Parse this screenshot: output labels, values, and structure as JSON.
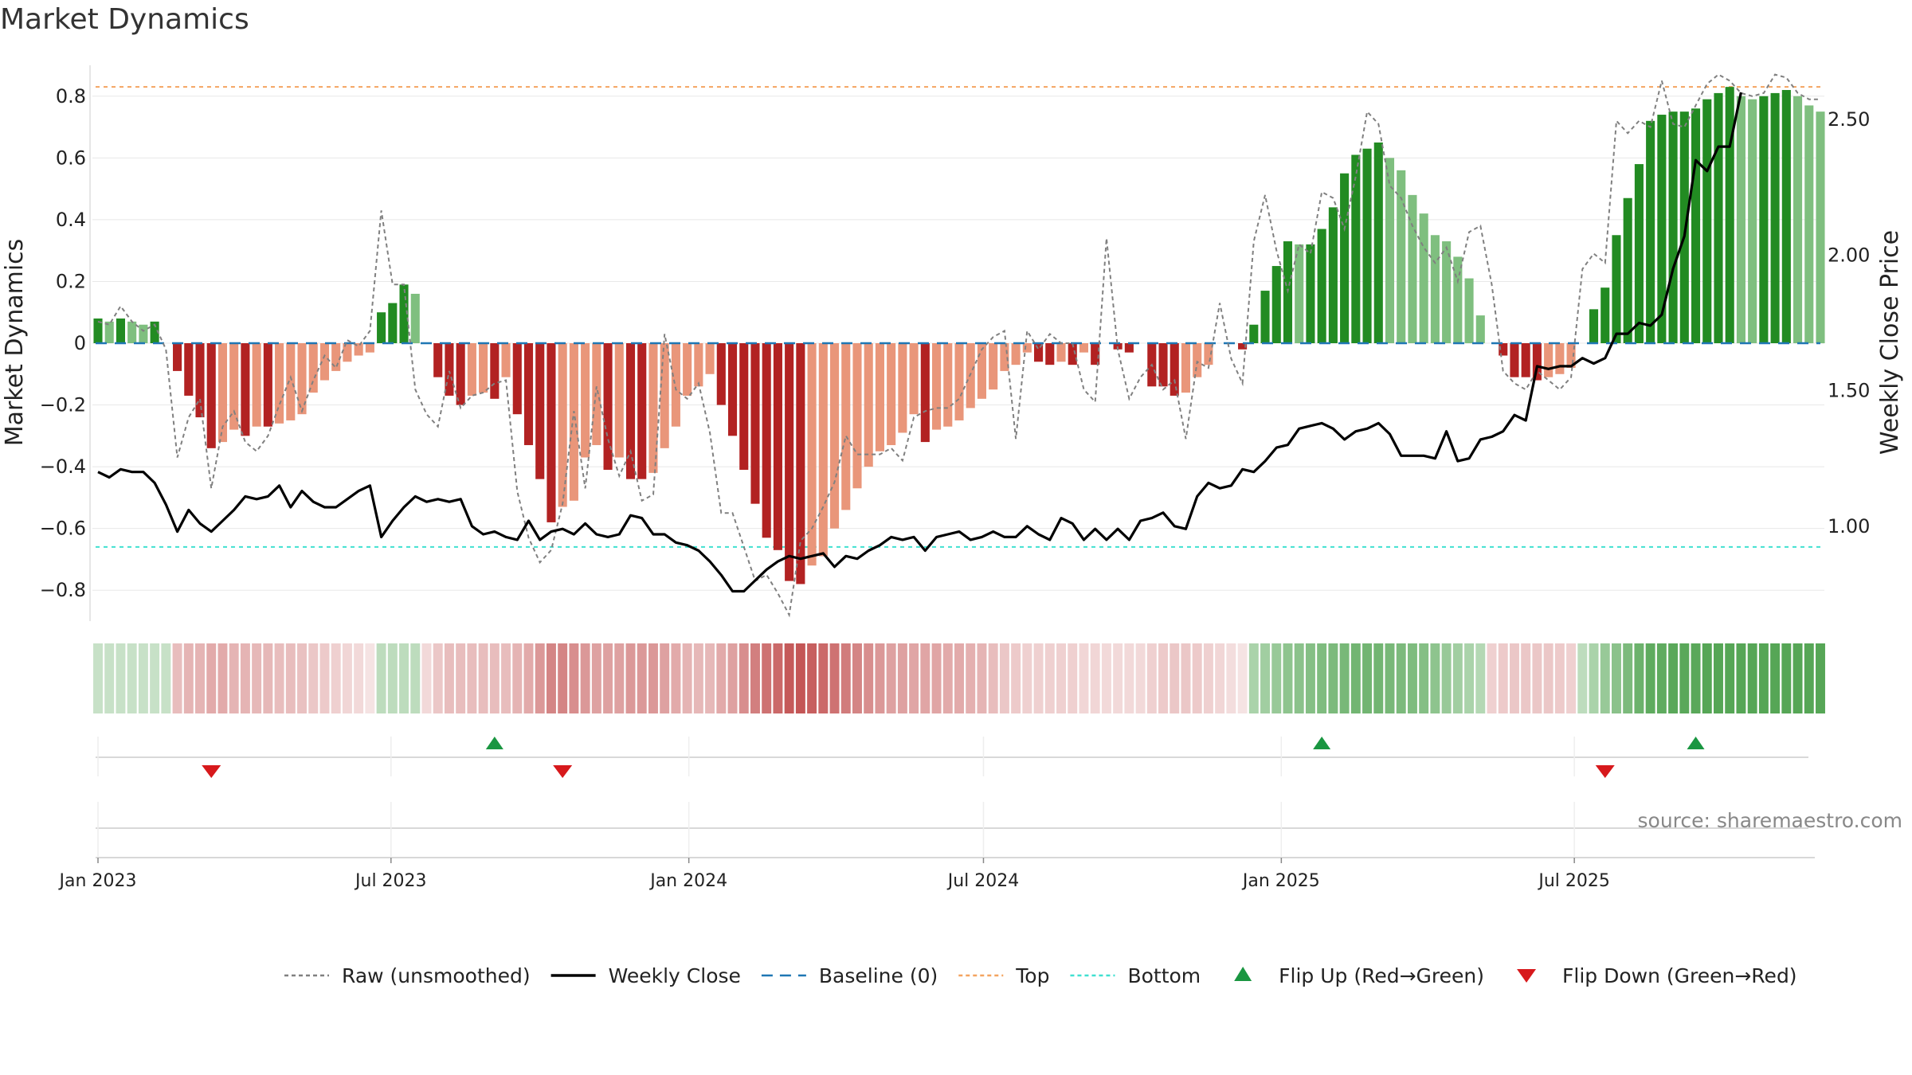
{
  "title": "Market Dynamics",
  "source": "source: sharemaestro.com",
  "colors": {
    "green_strong": "#228b22",
    "green_light": "#7fbf7f",
    "red_strong": "#b22222",
    "red_light": "#e9967a",
    "raw": "#808080",
    "close": "#000000",
    "baseline": "#1f77b4",
    "top": "#f4a460",
    "bottom": "#40e0d0",
    "flip_up": "#1a9641",
    "flip_down": "#d7191c"
  },
  "chart_data": {
    "type": "bar",
    "start_date": "2023-01-01",
    "week_step_days": 7,
    "x_ticks": [
      {
        "date": "2023-01-01",
        "label": "Jan 2023"
      },
      {
        "date": "2023-07-01",
        "label": "Jul 2023"
      },
      {
        "date": "2024-01-01",
        "label": "Jan 2024"
      },
      {
        "date": "2024-07-01",
        "label": "Jul 2024"
      },
      {
        "date": "2025-01-01",
        "label": "Jan 2025"
      },
      {
        "date": "2025-07-01",
        "label": "Jul 2025"
      }
    ],
    "ylabel": "Market Dynamics",
    "y2label": "Weekly Close Price",
    "ylim": [
      -0.9,
      0.9
    ],
    "y2lim": [
      0.65,
      2.7
    ],
    "y_ticks": [
      {
        "v": 0.8,
        "label": "0.8"
      },
      {
        "v": 0.6,
        "label": "0.6"
      },
      {
        "v": 0.4,
        "label": "0.4"
      },
      {
        "v": 0.2,
        "label": "0.2"
      },
      {
        "v": 0,
        "label": "0"
      },
      {
        "v": -0.2,
        "label": "−0.2"
      },
      {
        "v": -0.4,
        "label": "−0.4"
      },
      {
        "v": -0.6,
        "label": "−0.6"
      },
      {
        "v": -0.8,
        "label": "−0.8"
      }
    ],
    "y2_ticks": [
      {
        "v": 2.5,
        "label": "2.50"
      },
      {
        "v": 2.0,
        "label": "2.00"
      },
      {
        "v": 1.5,
        "label": "1.50"
      },
      {
        "v": 1.0,
        "label": "1.00"
      }
    ],
    "top_level": 0.83,
    "bottom_level": -0.66,
    "baseline": 0,
    "momentum": [
      0.08,
      0.07,
      0.08,
      0.07,
      0.06,
      0.07,
      0,
      -0.09,
      -0.17,
      -0.24,
      -0.34,
      -0.32,
      -0.28,
      -0.3,
      -0.27,
      -0.27,
      -0.26,
      -0.25,
      -0.23,
      -0.16,
      -0.12,
      -0.09,
      -0.06,
      -0.04,
      -0.03,
      0.1,
      0.13,
      0.19,
      0.16,
      0,
      -0.11,
      -0.17,
      -0.2,
      -0.17,
      -0.16,
      -0.18,
      -0.11,
      -0.23,
      -0.33,
      -0.44,
      -0.58,
      -0.53,
      -0.51,
      -0.37,
      -0.33,
      -0.41,
      -0.37,
      -0.44,
      -0.44,
      -0.42,
      -0.34,
      -0.27,
      -0.17,
      -0.14,
      -0.1,
      -0.2,
      -0.3,
      -0.41,
      -0.52,
      -0.63,
      -0.67,
      -0.77,
      -0.78,
      -0.72,
      -0.69,
      -0.6,
      -0.54,
      -0.47,
      -0.4,
      -0.35,
      -0.33,
      -0.29,
      -0.23,
      -0.32,
      -0.28,
      -0.27,
      -0.25,
      -0.21,
      -0.18,
      -0.15,
      -0.09,
      -0.07,
      -0.03,
      -0.06,
      -0.07,
      -0.06,
      -0.07,
      -0.03,
      -0.07,
      0,
      -0.02,
      -0.03,
      0,
      -0.14,
      -0.14,
      -0.17,
      -0.16,
      -0.11,
      -0.07,
      0,
      0,
      -0.02,
      0.06,
      0.17,
      0.25,
      0.33,
      0.32,
      0.32,
      0.37,
      0.44,
      0.55,
      0.61,
      0.63,
      0.65,
      0.6,
      0.56,
      0.48,
      0.42,
      0.35,
      0.33,
      0.28,
      0.21,
      0.09,
      0,
      -0.04,
      -0.11,
      -0.11,
      -0.12,
      -0.11,
      -0.1,
      -0.08,
      0,
      0.11,
      0.18,
      0.35,
      0.47,
      0.58,
      0.72,
      0.74,
      0.75,
      0.75,
      0.76,
      0.79,
      0.81,
      0.83,
      0.8,
      0.79,
      0.8,
      0.81,
      0.82,
      0.8,
      0.77,
      0.75
    ],
    "raw": [
      0.07,
      0.06,
      0.12,
      0.07,
      0.04,
      0.06,
      -0.02,
      -0.37,
      -0.24,
      -0.18,
      -0.47,
      -0.27,
      -0.22,
      -0.32,
      -0.35,
      -0.3,
      -0.2,
      -0.11,
      -0.22,
      -0.12,
      -0.04,
      -0.08,
      0.01,
      -0.01,
      0.04,
      0.43,
      0.19,
      0.19,
      -0.15,
      -0.23,
      -0.27,
      -0.09,
      -0.21,
      -0.17,
      -0.16,
      -0.13,
      -0.12,
      -0.48,
      -0.63,
      -0.71,
      -0.67,
      -0.52,
      -0.22,
      -0.47,
      -0.14,
      -0.31,
      -0.43,
      -0.35,
      -0.51,
      -0.49,
      0.03,
      -0.15,
      -0.18,
      -0.13,
      -0.29,
      -0.55,
      -0.55,
      -0.66,
      -0.77,
      -0.75,
      -0.81,
      -0.88,
      -0.64,
      -0.6,
      -0.53,
      -0.45,
      -0.3,
      -0.36,
      -0.36,
      -0.36,
      -0.34,
      -0.38,
      -0.24,
      -0.22,
      -0.21,
      -0.21,
      -0.18,
      -0.1,
      -0.02,
      0.02,
      0.04,
      -0.31,
      0.04,
      -0.02,
      0.03,
      0,
      0,
      -0.15,
      -0.19,
      0.34,
      -0.02,
      -0.18,
      -0.11,
      -0.07,
      -0.15,
      -0.12,
      -0.31,
      -0.06,
      -0.08,
      0.13,
      -0.05,
      -0.13,
      0.33,
      0.48,
      0.3,
      0.17,
      0.32,
      0.29,
      0.49,
      0.47,
      0.37,
      0.54,
      0.75,
      0.71,
      0.51,
      0.47,
      0.38,
      0.31,
      0.26,
      0.31,
      0.2,
      0.36,
      0.38,
      0.19,
      -0.09,
      -0.13,
      -0.15,
      -0.09,
      -0.12,
      -0.15,
      -0.11,
      0.24,
      0.29,
      0.26,
      0.72,
      0.68,
      0.72,
      0.7,
      0.85,
      0.71,
      0.7,
      0.77,
      0.84,
      0.87,
      0.85,
      0.81,
      0.8,
      0.81,
      0.87,
      0.86,
      0.81,
      0.79,
      0.79
    ],
    "close": [
      1.2,
      1.18,
      1.21,
      1.2,
      1.2,
      1.16,
      1.08,
      0.98,
      1.06,
      1.01,
      0.98,
      1.02,
      1.06,
      1.11,
      1.1,
      1.11,
      1.15,
      1.07,
      1.13,
      1.09,
      1.07,
      1.07,
      1.1,
      1.13,
      1.15,
      0.96,
      1.02,
      1.07,
      1.11,
      1.09,
      1.1,
      1.09,
      1.1,
      1.0,
      0.97,
      0.98,
      0.96,
      0.95,
      1.02,
      0.95,
      0.98,
      0.99,
      0.97,
      1.01,
      0.97,
      0.96,
      0.97,
      1.04,
      1.03,
      0.97,
      0.97,
      0.94,
      0.93,
      0.91,
      0.87,
      0.82,
      0.76,
      0.76,
      0.8,
      0.84,
      0.87,
      0.89,
      0.88,
      0.89,
      0.9,
      0.85,
      0.89,
      0.88,
      0.91,
      0.93,
      0.96,
      0.95,
      0.96,
      0.91,
      0.96,
      0.97,
      0.98,
      0.95,
      0.96,
      0.98,
      0.96,
      0.96,
      1.0,
      0.97,
      0.95,
      1.03,
      1.01,
      0.95,
      0.99,
      0.95,
      0.99,
      0.95,
      1.02,
      1.03,
      1.05,
      1.0,
      0.99,
      1.11,
      1.16,
      1.14,
      1.15,
      1.21,
      1.2,
      1.24,
      1.29,
      1.3,
      1.36,
      1.37,
      1.38,
      1.36,
      1.32,
      1.35,
      1.36,
      1.38,
      1.34,
      1.26,
      1.26,
      1.26,
      1.25,
      1.35,
      1.24,
      1.25,
      1.32,
      1.33,
      1.35,
      1.41,
      1.39,
      1.59,
      1.58,
      1.59,
      1.59,
      1.62,
      1.6,
      1.62,
      1.71,
      1.71,
      1.75,
      1.74,
      1.78,
      1.95,
      2.07,
      2.35,
      2.31,
      2.4,
      2.4,
      2.6
    ],
    "regime": [
      0.3,
      0.3,
      0.3,
      0.3,
      0.3,
      0.3,
      0.3,
      -0.35,
      -0.4,
      -0.4,
      -0.45,
      -0.45,
      -0.4,
      -0.4,
      -0.38,
      -0.38,
      -0.35,
      -0.35,
      -0.33,
      -0.3,
      -0.28,
      -0.25,
      -0.22,
      -0.2,
      -0.15,
      0.35,
      0.35,
      0.35,
      0.35,
      -0.2,
      -0.3,
      -0.35,
      -0.35,
      -0.35,
      -0.35,
      -0.35,
      -0.35,
      -0.4,
      -0.45,
      -0.55,
      -0.65,
      -0.65,
      -0.6,
      -0.55,
      -0.5,
      -0.5,
      -0.5,
      -0.55,
      -0.55,
      -0.55,
      -0.5,
      -0.45,
      -0.4,
      -0.38,
      -0.38,
      -0.45,
      -0.5,
      -0.6,
      -0.68,
      -0.75,
      -0.8,
      -0.88,
      -0.9,
      -0.85,
      -0.8,
      -0.75,
      -0.7,
      -0.65,
      -0.6,
      -0.55,
      -0.5,
      -0.5,
      -0.48,
      -0.48,
      -0.48,
      -0.45,
      -0.45,
      -0.42,
      -0.4,
      -0.35,
      -0.3,
      -0.28,
      -0.25,
      -0.25,
      -0.25,
      -0.25,
      -0.25,
      -0.22,
      -0.22,
      -0.2,
      -0.2,
      -0.2,
      -0.2,
      -0.25,
      -0.28,
      -0.3,
      -0.3,
      -0.28,
      -0.25,
      -0.22,
      -0.18,
      -0.15,
      0.45,
      0.5,
      0.55,
      0.6,
      0.62,
      0.65,
      0.68,
      0.7,
      0.72,
      0.75,
      0.75,
      0.75,
      0.72,
      0.7,
      0.68,
      0.65,
      0.6,
      0.55,
      0.5,
      0.45,
      0.4,
      -0.25,
      -0.28,
      -0.3,
      -0.3,
      -0.3,
      -0.3,
      -0.28,
      -0.25,
      0.35,
      0.45,
      0.55,
      0.62,
      0.7,
      0.78,
      0.85,
      0.85,
      0.88,
      0.88,
      0.88,
      0.9,
      0.9,
      0.9,
      0.9,
      0.9,
      0.9,
      0.9,
      0.9,
      0.9,
      0.9,
      0.9
    ],
    "flips": [
      {
        "week": 10,
        "dir": "down"
      },
      {
        "week": 35,
        "dir": "up"
      },
      {
        "week": 41,
        "dir": "down"
      },
      {
        "week": 108,
        "dir": "up"
      },
      {
        "week": 133,
        "dir": "down"
      },
      {
        "week": 141,
        "dir": "up"
      }
    ],
    "legend": [
      {
        "key": "raw",
        "label": "Raw (unsmoothed)",
        "style": "dotted"
      },
      {
        "key": "close",
        "label": "Weekly Close",
        "style": "solid"
      },
      {
        "key": "baseline",
        "label": "Baseline (0)",
        "style": "dashed"
      },
      {
        "key": "top",
        "label": "Top",
        "style": "dotted"
      },
      {
        "key": "bottom",
        "label": "Bottom",
        "style": "dotted"
      },
      {
        "key": "flip_up",
        "label": "Flip Up (Red→Green)",
        "style": "tri-up"
      },
      {
        "key": "flip_down",
        "label": "Flip Down (Green→Red)",
        "style": "tri-down"
      }
    ]
  }
}
